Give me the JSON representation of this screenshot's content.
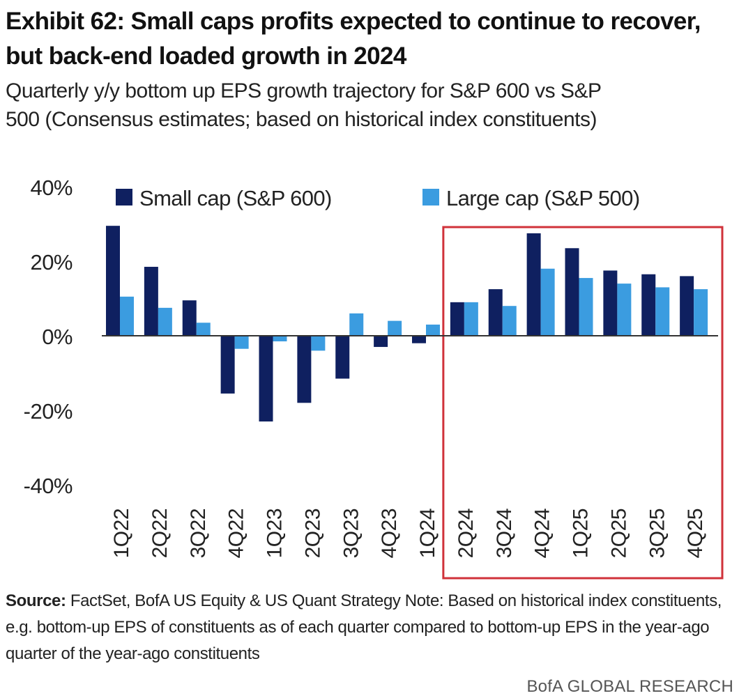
{
  "header": {
    "title_line1": "Exhibit 62: Small caps profits expected to continue to recover,",
    "title_line2": "but back-end loaded growth in 2024",
    "subtitle_line1": "Quarterly y/y bottom up EPS growth trajectory for S&P 600 vs S&P",
    "subtitle_line2": "500 (Consensus estimates; based on historical index constituents)"
  },
  "chart_data": {
    "type": "bar",
    "title": "",
    "xlabel": "",
    "ylabel": "",
    "categories": [
      "1Q22",
      "2Q22",
      "3Q22",
      "4Q22",
      "1Q23",
      "2Q23",
      "3Q23",
      "4Q23",
      "1Q24",
      "2Q24",
      "3Q24",
      "4Q24",
      "1Q25",
      "2Q25",
      "3Q25",
      "4Q25"
    ],
    "series": [
      {
        "name": "Small cap (S&P 600)",
        "color": "#0f2060",
        "values": [
          29.5,
          18.5,
          9.5,
          -15.5,
          -23,
          -18,
          -11.5,
          -3,
          -2,
          9,
          12.5,
          27.5,
          23.5,
          17.5,
          16.5,
          16
        ]
      },
      {
        "name": "Large cap (S&P 500)",
        "color": "#3b9ce0",
        "values": [
          10.5,
          7.5,
          3.5,
          -3.5,
          -1.5,
          -4,
          6,
          4,
          3,
          9,
          8,
          18,
          15.5,
          14,
          13,
          12.5
        ]
      }
    ],
    "ylim": [
      -40,
      40
    ],
    "yticks": [
      40,
      20,
      0,
      -20,
      -40
    ],
    "ytick_labels": [
      "40%",
      "20%",
      "0%",
      "-20%",
      "-40%"
    ],
    "legend_position": "top",
    "grid": false,
    "highlight": {
      "from_category": "2Q24",
      "to_category": "4Q25",
      "color": "#d0323a"
    }
  },
  "footer": {
    "source_label": "Source:",
    "source_text": " FactSet, BofA US Equity & US Quant Strategy Note: Based on historical index constituents, e.g. bottom-up EPS of constituents as of each quarter compared to bottom-up EPS in the year-ago quarter of the year-ago constituents",
    "brand": "BofA GLOBAL RESEARCH"
  }
}
